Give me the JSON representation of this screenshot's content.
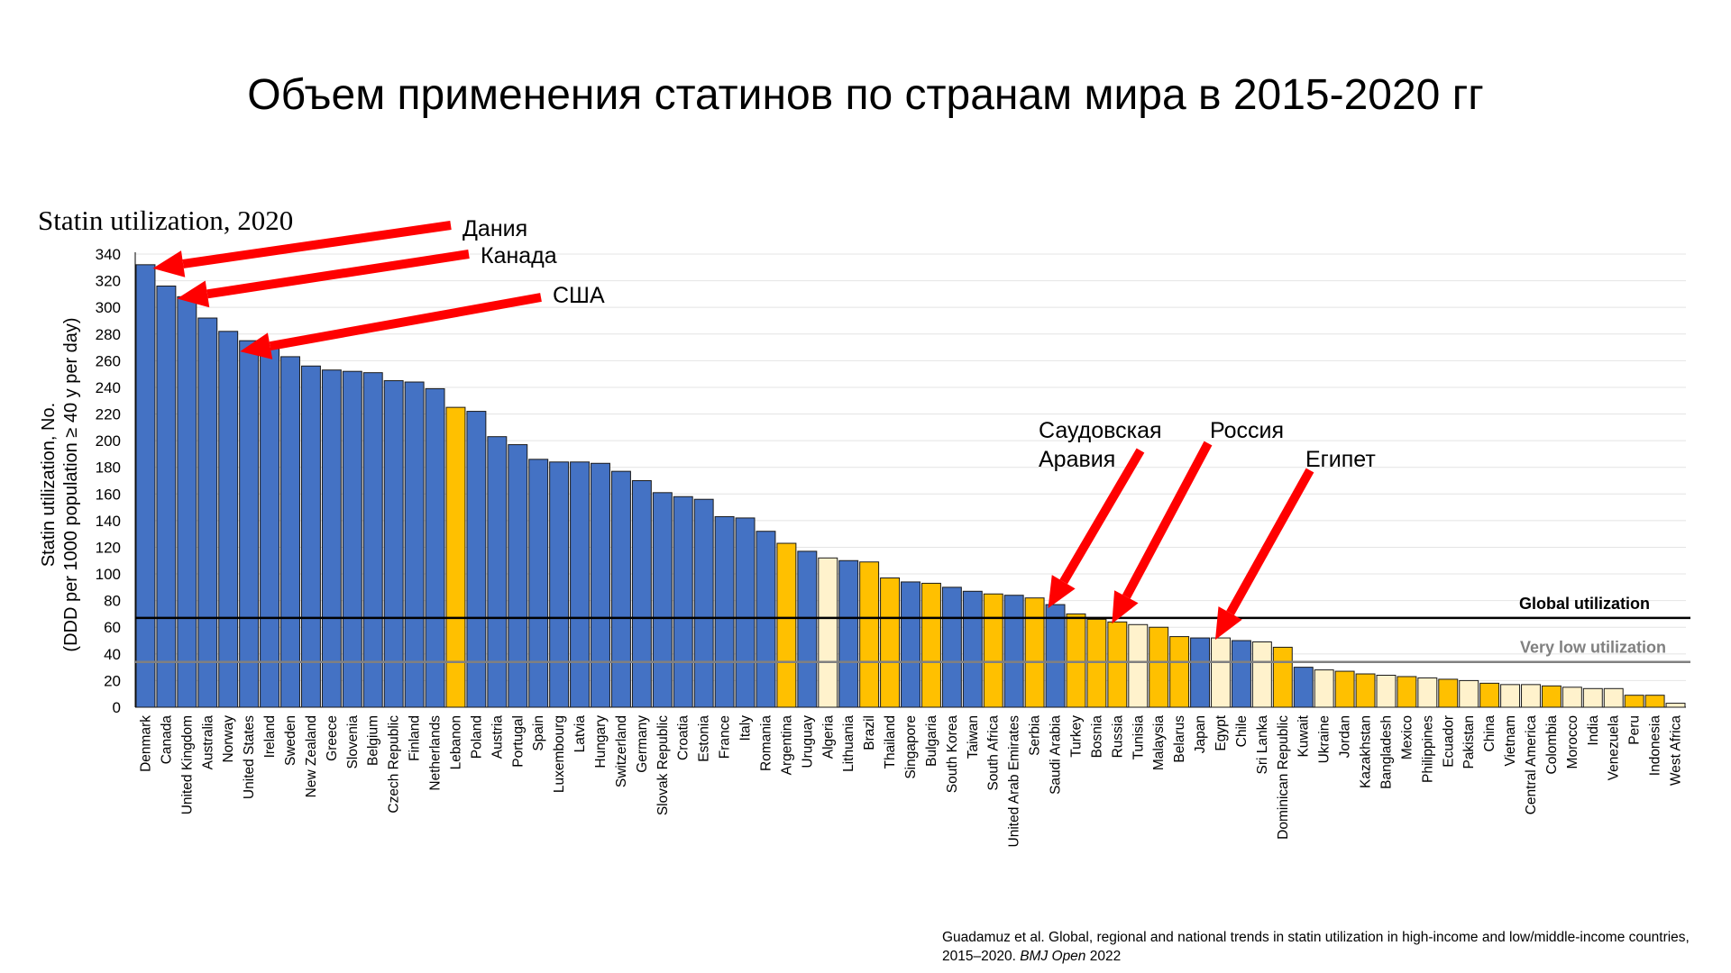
{
  "slide_title": "Объем применения статинов по странам мира в 2015-2020 гг",
  "citation": {
    "text": "Guadamuz et al. Global, regional and national trends in statin utilization in high-income and low/middle-income countries, 2015–2020.",
    "journal": "BMJ Open",
    "year": "2022"
  },
  "colors": {
    "high_income": "#4472C4",
    "upper_middle_income": "#FFC000",
    "lower_middle_income": "#FFF2CC",
    "arrow": "#FF0000",
    "global_line": "#000000",
    "very_low_line": "#808080"
  },
  "chart_data": {
    "type": "bar",
    "title": "Statin utilization, 2020",
    "ylabel_line1": "Statin utilization, No.",
    "ylabel_line2": "(DDD per 1000 population ≥ 40 y per day)",
    "ylim": [
      0,
      340
    ],
    "yticks": [
      0,
      20,
      40,
      60,
      80,
      100,
      120,
      140,
      160,
      180,
      200,
      220,
      240,
      260,
      280,
      300,
      320,
      340
    ],
    "grid": true,
    "categories": [
      "Denmark",
      "Canada",
      "United Kingdom",
      "Australia",
      "Norway",
      "United States",
      "Ireland",
      "Sweden",
      "New Zealand",
      "Greece",
      "Slovenia",
      "Belgium",
      "Czech Republic",
      "Finland",
      "Netherlands",
      "Lebanon",
      "Poland",
      "Austria",
      "Portugal",
      "Spain",
      "Luxembourg",
      "Latvia",
      "Hungary",
      "Switzerland",
      "Germany",
      "Slovak Republic",
      "Croatia",
      "Estonia",
      "France",
      "Italy",
      "Romania",
      "Argentina",
      "Uruguay",
      "Algeria",
      "Lithuania",
      "Brazil",
      "Thailand",
      "Singapore",
      "Bulgaria",
      "South Korea",
      "Taiwan",
      "South Africa",
      "United Arab Emirates",
      "Serbia",
      "Saudi Arabia",
      "Turkey",
      "Bosnia",
      "Russia",
      "Tunisia",
      "Malaysia",
      "Belarus",
      "Japan",
      "Egypt",
      "Chile",
      "Sri Lanka",
      "Dominican Republic",
      "Kuwait",
      "Ukraine",
      "Jordan",
      "Kazakhstan",
      "Bangladesh",
      "Mexico",
      "Philippines",
      "Ecuador",
      "Pakistan",
      "China",
      "Vietnam",
      "Central America",
      "Colombia",
      "Morocco",
      "India",
      "Venezuela",
      "Peru",
      "Indonesia",
      "West Africa"
    ],
    "values": [
      332,
      316,
      308,
      292,
      282,
      275,
      269,
      263,
      256,
      253,
      252,
      251,
      245,
      244,
      239,
      225,
      222,
      203,
      197,
      186,
      184,
      184,
      183,
      177,
      170,
      161,
      158,
      156,
      143,
      142,
      132,
      123,
      117,
      112,
      110,
      109,
      97,
      94,
      93,
      90,
      87,
      85,
      84,
      82,
      77,
      70,
      66,
      64,
      62,
      60,
      53,
      52,
      52,
      50,
      49,
      45,
      30,
      28,
      27,
      25,
      24,
      23,
      22,
      21,
      20,
      18,
      17,
      17,
      16,
      15,
      14,
      14,
      9,
      9,
      3
    ],
    "income_group": [
      "high",
      "high",
      "high",
      "high",
      "high",
      "high",
      "high",
      "high",
      "high",
      "high",
      "high",
      "high",
      "high",
      "high",
      "high",
      "upper",
      "high",
      "high",
      "high",
      "high",
      "high",
      "high",
      "high",
      "high",
      "high",
      "high",
      "high",
      "high",
      "high",
      "high",
      "high",
      "upper",
      "high",
      "lower",
      "high",
      "upper",
      "upper",
      "high",
      "upper",
      "high",
      "high",
      "upper",
      "high",
      "upper",
      "high",
      "upper",
      "upper",
      "upper",
      "lower",
      "upper",
      "upper",
      "high",
      "lower",
      "high",
      "lower",
      "upper",
      "high",
      "lower",
      "upper",
      "upper",
      "lower",
      "upper",
      "lower",
      "upper",
      "lower",
      "upper",
      "lower",
      "lower",
      "upper",
      "lower",
      "lower",
      "lower",
      "upper",
      "upper",
      "lower"
    ],
    "reference_lines": [
      {
        "label": "Global utilization",
        "value": 67
      },
      {
        "label": "Very low utilization",
        "value": 34
      }
    ],
    "annotations": [
      {
        "text": "Дания",
        "target": "Denmark"
      },
      {
        "text": "Канада",
        "target": "Canada"
      },
      {
        "text": "США",
        "target": "United States"
      },
      {
        "text_line1": "Саудовская",
        "text_line2": "Аравия",
        "target": "Saudi Arabia"
      },
      {
        "text": "Россия",
        "target": "Russia"
      },
      {
        "text": "Египет",
        "target": "Egypt"
      }
    ]
  }
}
